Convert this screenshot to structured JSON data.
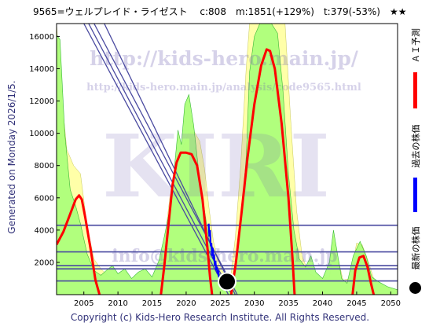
{
  "header": {
    "title": "9565=ウェルプレイド・ライゼスト　 c:808　m:1851(+129%)　t:379(-53%)　★★"
  },
  "side_label": "Generated on Monday 2026/1/5.",
  "copyright": "Copyright (c) Kids-Hero Research Institute. All Rights Reserved.",
  "legend": [
    {
      "label": "ＡＩ予測",
      "color": "#ff0000"
    },
    {
      "label": "過去の株価",
      "color": "#0000ff"
    },
    {
      "label": "最新の株価",
      "color": "#000000"
    }
  ],
  "watermarks": {
    "url1": "http://kids-hero.main.jp/",
    "url2": "http://kids-hero.main.jp/analysis/code9565.html",
    "big": "KIRI",
    "email": "info@kids-hero.main.jp"
  },
  "colors": {
    "plot_bg": "#ffffff",
    "green_fill": "#adff7a",
    "yellow_fill": "#ffffa8",
    "band_line": "#4a4aa0",
    "ai_line": "#ff0000",
    "past_line": "#0000ff"
  },
  "chart_data": {
    "type": "line",
    "title": "",
    "xlim": [
      2001,
      2051
    ],
    "ylim": [
      0,
      16800
    ],
    "xticks": [
      2005,
      2010,
      2015,
      2020,
      2025,
      2030,
      2035,
      2040,
      2045,
      2050
    ],
    "yticks": [
      0,
      2000,
      4000,
      6000,
      8000,
      10000,
      12000,
      14000,
      16000
    ],
    "grid": false,
    "horizontal_levels": [
      4300,
      2650,
      1800,
      1600,
      850
    ],
    "trend_lines": [
      {
        "from": [
          2005.0,
          16800
        ],
        "to": [
          2026.2,
          0
        ]
      },
      {
        "from": [
          2005.7,
          16800
        ],
        "to": [
          2026.7,
          0
        ]
      },
      {
        "from": [
          2006.5,
          16800
        ],
        "to": [
          2027.5,
          0
        ]
      },
      {
        "from": [
          2008.0,
          16800
        ],
        "to": [
          2027.2,
          0
        ]
      }
    ],
    "ai_forecast": {
      "name": "ＡＩ予測",
      "segments": [
        [
          [
            2001,
            3100
          ],
          [
            2002,
            3900
          ],
          [
            2003,
            5000
          ],
          [
            2003.8,
            5900
          ],
          [
            2004.3,
            6150
          ],
          [
            2004.7,
            5900
          ],
          [
            2005.2,
            4800
          ],
          [
            2006,
            2800
          ],
          [
            2006.7,
            900
          ],
          [
            2007.3,
            0
          ]
        ],
        [
          [
            2016.3,
            0
          ],
          [
            2016.8,
            1800
          ],
          [
            2017.4,
            4300
          ],
          [
            2018,
            6800
          ],
          [
            2018.6,
            8200
          ],
          [
            2019.2,
            8800
          ],
          [
            2020,
            8800
          ],
          [
            2020.8,
            8700
          ],
          [
            2021.6,
            8000
          ],
          [
            2022.4,
            5900
          ],
          [
            2023.1,
            3000
          ],
          [
            2023.5,
            1100
          ],
          [
            2023.8,
            0
          ]
        ],
        [
          [
            2026.6,
            0
          ],
          [
            2027.3,
            2000
          ],
          [
            2028.1,
            5000
          ],
          [
            2029,
            8500
          ],
          [
            2030,
            11800
          ],
          [
            2031,
            14200
          ],
          [
            2031.8,
            15200
          ],
          [
            2032.3,
            15100
          ],
          [
            2033,
            14000
          ],
          [
            2034,
            10600
          ],
          [
            2035,
            6000
          ],
          [
            2035.6,
            2200
          ],
          [
            2035.9,
            0
          ]
        ],
        [
          [
            2044.4,
            0
          ],
          [
            2044.8,
            1500
          ],
          [
            2045.4,
            2300
          ],
          [
            2046,
            2400
          ],
          [
            2046.6,
            1700
          ],
          [
            2047.1,
            700
          ],
          [
            2047.5,
            0
          ]
        ]
      ]
    },
    "past_price": {
      "name": "過去の株価",
      "points": [
        [
          2023.3,
          4400
        ],
        [
          2023.4,
          3600
        ],
        [
          2023.5,
          4000
        ],
        [
          2023.6,
          3000
        ],
        [
          2023.7,
          3200
        ],
        [
          2023.8,
          2400
        ],
        [
          2023.9,
          2900
        ],
        [
          2024.0,
          2200
        ],
        [
          2024.1,
          2500
        ],
        [
          2024.2,
          1800
        ],
        [
          2024.3,
          2100
        ],
        [
          2024.4,
          1500
        ],
        [
          2024.5,
          1700
        ],
        [
          2024.6,
          1300
        ],
        [
          2024.7,
          1500
        ],
        [
          2024.8,
          1100
        ],
        [
          2025.0,
          1000
        ],
        [
          2025.3,
          900
        ]
      ]
    },
    "latest_price": {
      "name": "最新の株価",
      "x": 2026.0,
      "y": 808
    },
    "yellow_band": [
      [
        2001,
        16800
      ],
      [
        2001.6,
        13000
      ],
      [
        2002.5,
        9000
      ],
      [
        2003.5,
        8000
      ],
      [
        2004.5,
        7500
      ],
      [
        2005.5,
        4200
      ],
      [
        2006.5,
        2200
      ],
      [
        2007.5,
        1600
      ],
      [
        2008.5,
        1200
      ],
      [
        2010,
        900
      ],
      [
        2012,
        700
      ],
      [
        2014.5,
        700
      ],
      [
        2015.8,
        1500
      ],
      [
        2016.8,
        3200
      ],
      [
        2017.6,
        6000
      ],
      [
        2018.2,
        7200
      ],
      [
        2018.7,
        8400
      ],
      [
        2019.6,
        9200
      ],
      [
        2020.3,
        10000
      ],
      [
        2021.2,
        10100
      ],
      [
        2022,
        9500
      ],
      [
        2022.7,
        7800
      ],
      [
        2023.4,
        5200
      ],
      [
        2024,
        3300
      ],
      [
        2024.8,
        1900
      ],
      [
        2025.8,
        1100
      ],
      [
        2026.5,
        1000
      ],
      [
        2027.2,
        3500
      ],
      [
        2028,
        8000
      ],
      [
        2028.8,
        14000
      ],
      [
        2029.3,
        16800
      ],
      [
        2034.5,
        16800
      ],
      [
        2035.3,
        11000
      ],
      [
        2036.2,
        5200
      ],
      [
        2037,
        2400
      ],
      [
        2038,
        1300
      ],
      [
        2039.5,
        1000
      ],
      [
        2041,
        1100
      ],
      [
        2041.7,
        2600
      ],
      [
        2042.3,
        2200
      ],
      [
        2043,
        900
      ],
      [
        2044,
        1000
      ],
      [
        2045,
        3200
      ],
      [
        2045.8,
        3100
      ],
      [
        2046.6,
        2200
      ],
      [
        2047.5,
        1000
      ],
      [
        2048.5,
        600
      ],
      [
        2050,
        400
      ],
      [
        2051,
        300
      ]
    ],
    "green_band": [
      [
        2001,
        16100
      ],
      [
        2001.5,
        15800
      ],
      [
        2002.2,
        10000
      ],
      [
        2003,
        6500
      ],
      [
        2003.8,
        5500
      ],
      [
        2004.5,
        4400
      ],
      [
        2005.5,
        2500
      ],
      [
        2006.5,
        1500
      ],
      [
        2007.5,
        1200
      ],
      [
        2008.3,
        1500
      ],
      [
        2009.2,
        1800
      ],
      [
        2010,
        1300
      ],
      [
        2011,
        1600
      ],
      [
        2012,
        1000
      ],
      [
        2013,
        1400
      ],
      [
        2014,
        1600
      ],
      [
        2015,
        1100
      ],
      [
        2016,
        2100
      ],
      [
        2016.8,
        3600
      ],
      [
        2017.6,
        5300
      ],
      [
        2018.2,
        7500
      ],
      [
        2018.8,
        10200
      ],
      [
        2019.3,
        9300
      ],
      [
        2019.8,
        11800
      ],
      [
        2020.4,
        12400
      ],
      [
        2021.1,
        10500
      ],
      [
        2021.8,
        7800
      ],
      [
        2022.6,
        5500
      ],
      [
        2023.3,
        3500
      ],
      [
        2024.1,
        2000
      ],
      [
        2025,
        1200
      ],
      [
        2026.5,
        600
      ],
      [
        2027.3,
        1600
      ],
      [
        2028.2,
        5300
      ],
      [
        2028.8,
        8500
      ],
      [
        2029.3,
        13800
      ],
      [
        2030,
        16000
      ],
      [
        2030.8,
        16800
      ],
      [
        2032.5,
        16800
      ],
      [
        2033.4,
        16200
      ],
      [
        2034.2,
        12600
      ],
      [
        2035,
        7500
      ],
      [
        2035.8,
        4000
      ],
      [
        2036.6,
        2200
      ],
      [
        2037.5,
        1700
      ],
      [
        2038.3,
        2400
      ],
      [
        2039,
        1400
      ],
      [
        2040,
        1000
      ],
      [
        2041,
        2000
      ],
      [
        2041.6,
        4000
      ],
      [
        2042.2,
        2500
      ],
      [
        2042.8,
        1000
      ],
      [
        2043.6,
        700
      ],
      [
        2044.5,
        2400
      ],
      [
        2045.5,
        3300
      ],
      [
        2046.4,
        2400
      ],
      [
        2047.2,
        1100
      ],
      [
        2048.2,
        800
      ],
      [
        2049.5,
        500
      ],
      [
        2051,
        300
      ]
    ]
  }
}
